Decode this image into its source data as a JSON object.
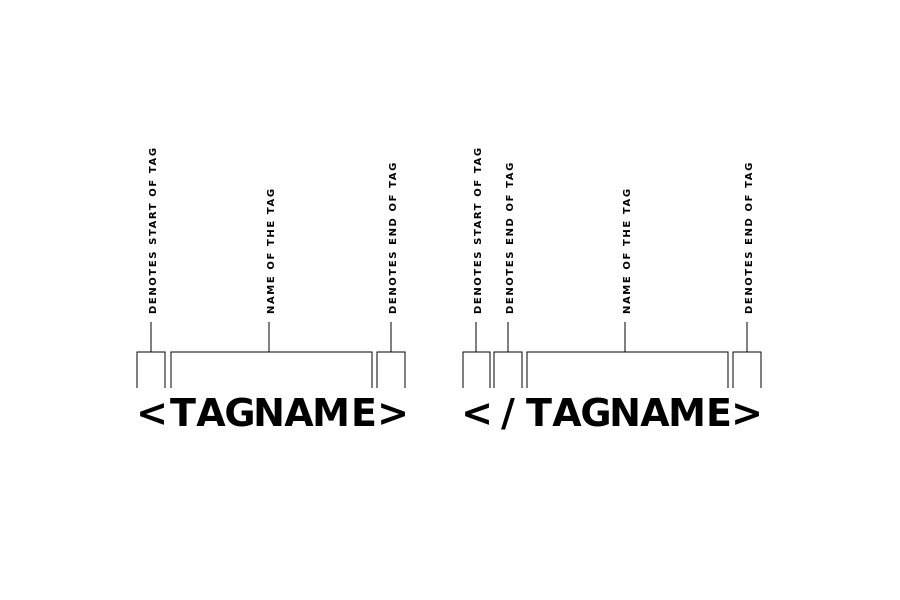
{
  "open_tag": {
    "chars": [
      "<",
      "T",
      "A",
      "G",
      "N",
      "A",
      "M",
      "E",
      ">"
    ],
    "labels": {
      "start": "DENOTES START OF TAG",
      "name": "NAME OF THE TAG",
      "end": "DENOTES END OF TAG"
    }
  },
  "close_tag": {
    "chars": [
      "<",
      "/",
      "T",
      "A",
      "G",
      "N",
      "A",
      "M",
      "E",
      ">"
    ],
    "labels": {
      "start": "DENOTES START OF TAG",
      "slash": "DENOTES END OF TAG",
      "name": "NAME OF THE TAG",
      "end": "DENOTES END OF TAG"
    }
  }
}
